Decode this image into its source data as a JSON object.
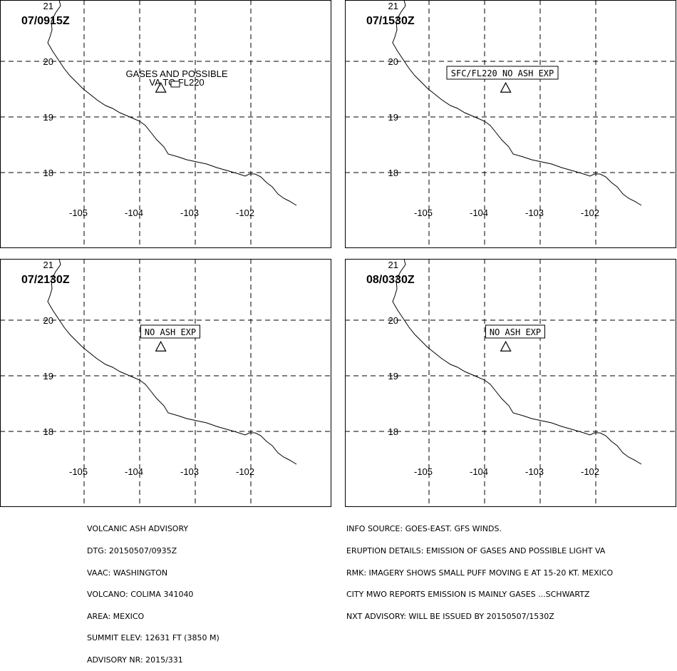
{
  "map": {
    "lat_ticks": [
      "21",
      "20",
      "19",
      "18"
    ],
    "lon_ticks": [
      "-105",
      "-104",
      "-103",
      "-102"
    ],
    "volcano": {
      "lat": 19.51,
      "lon": -103.62
    }
  },
  "panels": [
    {
      "time": "07/0915Z",
      "note_lines": [
        "GASES AND POSSIBLE",
        "VA TO FL220"
      ],
      "note_style": "plain"
    },
    {
      "time": "07/1530Z",
      "note_lines": [
        "SFC/FL220 NO ASH EXP"
      ],
      "note_style": "boxed"
    },
    {
      "time": "07/2130Z",
      "note_lines": [
        "NO ASH EXP"
      ],
      "note_style": "boxed"
    },
    {
      "time": "08/0330Z",
      "note_lines": [
        "NO ASH EXP"
      ],
      "note_style": "boxed"
    }
  ],
  "advisory_left": [
    "VOLCANIC ASH ADVISORY",
    "DTG: 20150507/0935Z",
    "VAAC: WASHINGTON",
    "VOLCANO: COLIMA 341040",
    "AREA: MEXICO",
    "SUMMIT ELEV: 12631 FT (3850 M)",
    "ADVISORY NR: 2015/331"
  ],
  "advisory_right": [
    "INFO SOURCE: GOES-EAST. GFS WINDS.",
    "ERUPTION DETAILS: EMISSION OF GASES AND POSSIBLE LIGHT VA",
    "RMK: IMAGERY SHOWS SMALL PUFF MOVING E AT 15-20 KT. MEXICO",
    "CITY MWO REPORTS EMISSION IS MAINLY GASES ...SCHWARTZ",
    "NXT ADVISORY: WILL BE ISSUED BY 20150507/1530Z"
  ]
}
